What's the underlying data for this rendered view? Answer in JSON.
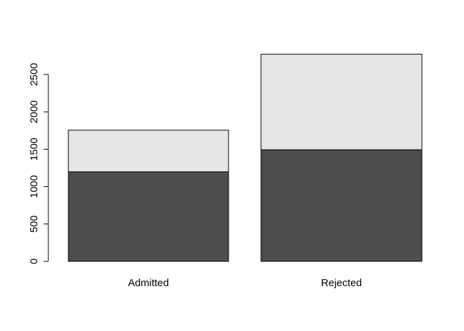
{
  "chart_data": {
    "type": "stacked-bar",
    "categories": [
      "Admitted",
      "Rejected"
    ],
    "series": [
      {
        "color": "#4d4d4d",
        "values": [
          1198,
          1493
        ]
      },
      {
        "color": "#e6e6e6",
        "values": [
          557,
          1278
        ]
      }
    ],
    "ylim": [
      0,
      2771
    ],
    "yticks": [
      0,
      500,
      1000,
      1500,
      2000,
      2500
    ],
    "grid": false
  }
}
